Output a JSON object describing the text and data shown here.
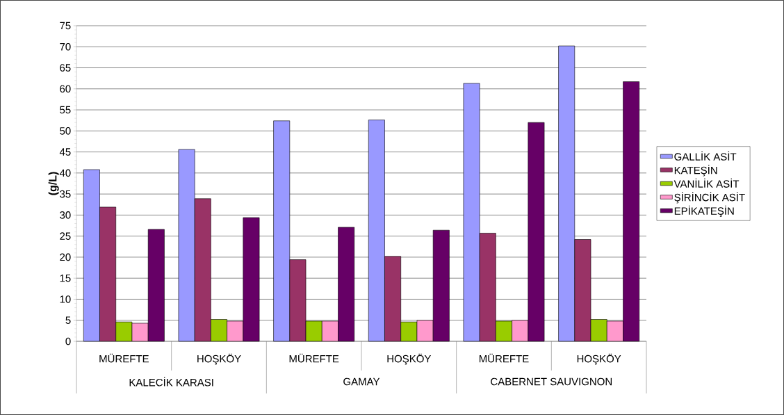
{
  "chart_data": {
    "type": "bar",
    "ylabel": "(g/L)",
    "categories": [
      "MÜREFTE",
      "HOŞKÖY",
      "MÜREFTE",
      "HOŞKÖY",
      "MÜREFTE",
      "HOŞKÖY"
    ],
    "annotations": [
      "KALECİK KARASI",
      "GAMAY",
      "CABERNET SAUVIGNON"
    ],
    "series": [
      {
        "name": "GALLİK ASİT",
        "color": "#9999ff",
        "values": [
          40.8,
          45.6,
          52.4,
          52.6,
          61.3,
          70.2
        ]
      },
      {
        "name": "KATEŞİN",
        "color": "#993366",
        "values": [
          31.9,
          33.9,
          19.4,
          20.2,
          25.7,
          24.2
        ]
      },
      {
        "name": "VANİLİK ASİT",
        "color": "#99cc00",
        "values": [
          4.6,
          5.2,
          4.8,
          4.6,
          4.8,
          5.2
        ]
      },
      {
        "name": "ŞİRİNCİK ASİT",
        "color": "#ff99cc",
        "values": [
          4.3,
          4.8,
          4.8,
          5.0,
          5.0,
          4.8
        ]
      },
      {
        "name": "EPİKATEŞİN",
        "color": "#660066",
        "values": [
          26.6,
          29.4,
          27.1,
          26.4,
          52.0,
          61.7
        ]
      }
    ],
    "ylim": [
      0,
      75
    ],
    "yticks": [
      0,
      5,
      10,
      15,
      20,
      25,
      30,
      35,
      40,
      45,
      50,
      55,
      60,
      65,
      70,
      75
    ],
    "grid": "y",
    "legend": "right"
  }
}
